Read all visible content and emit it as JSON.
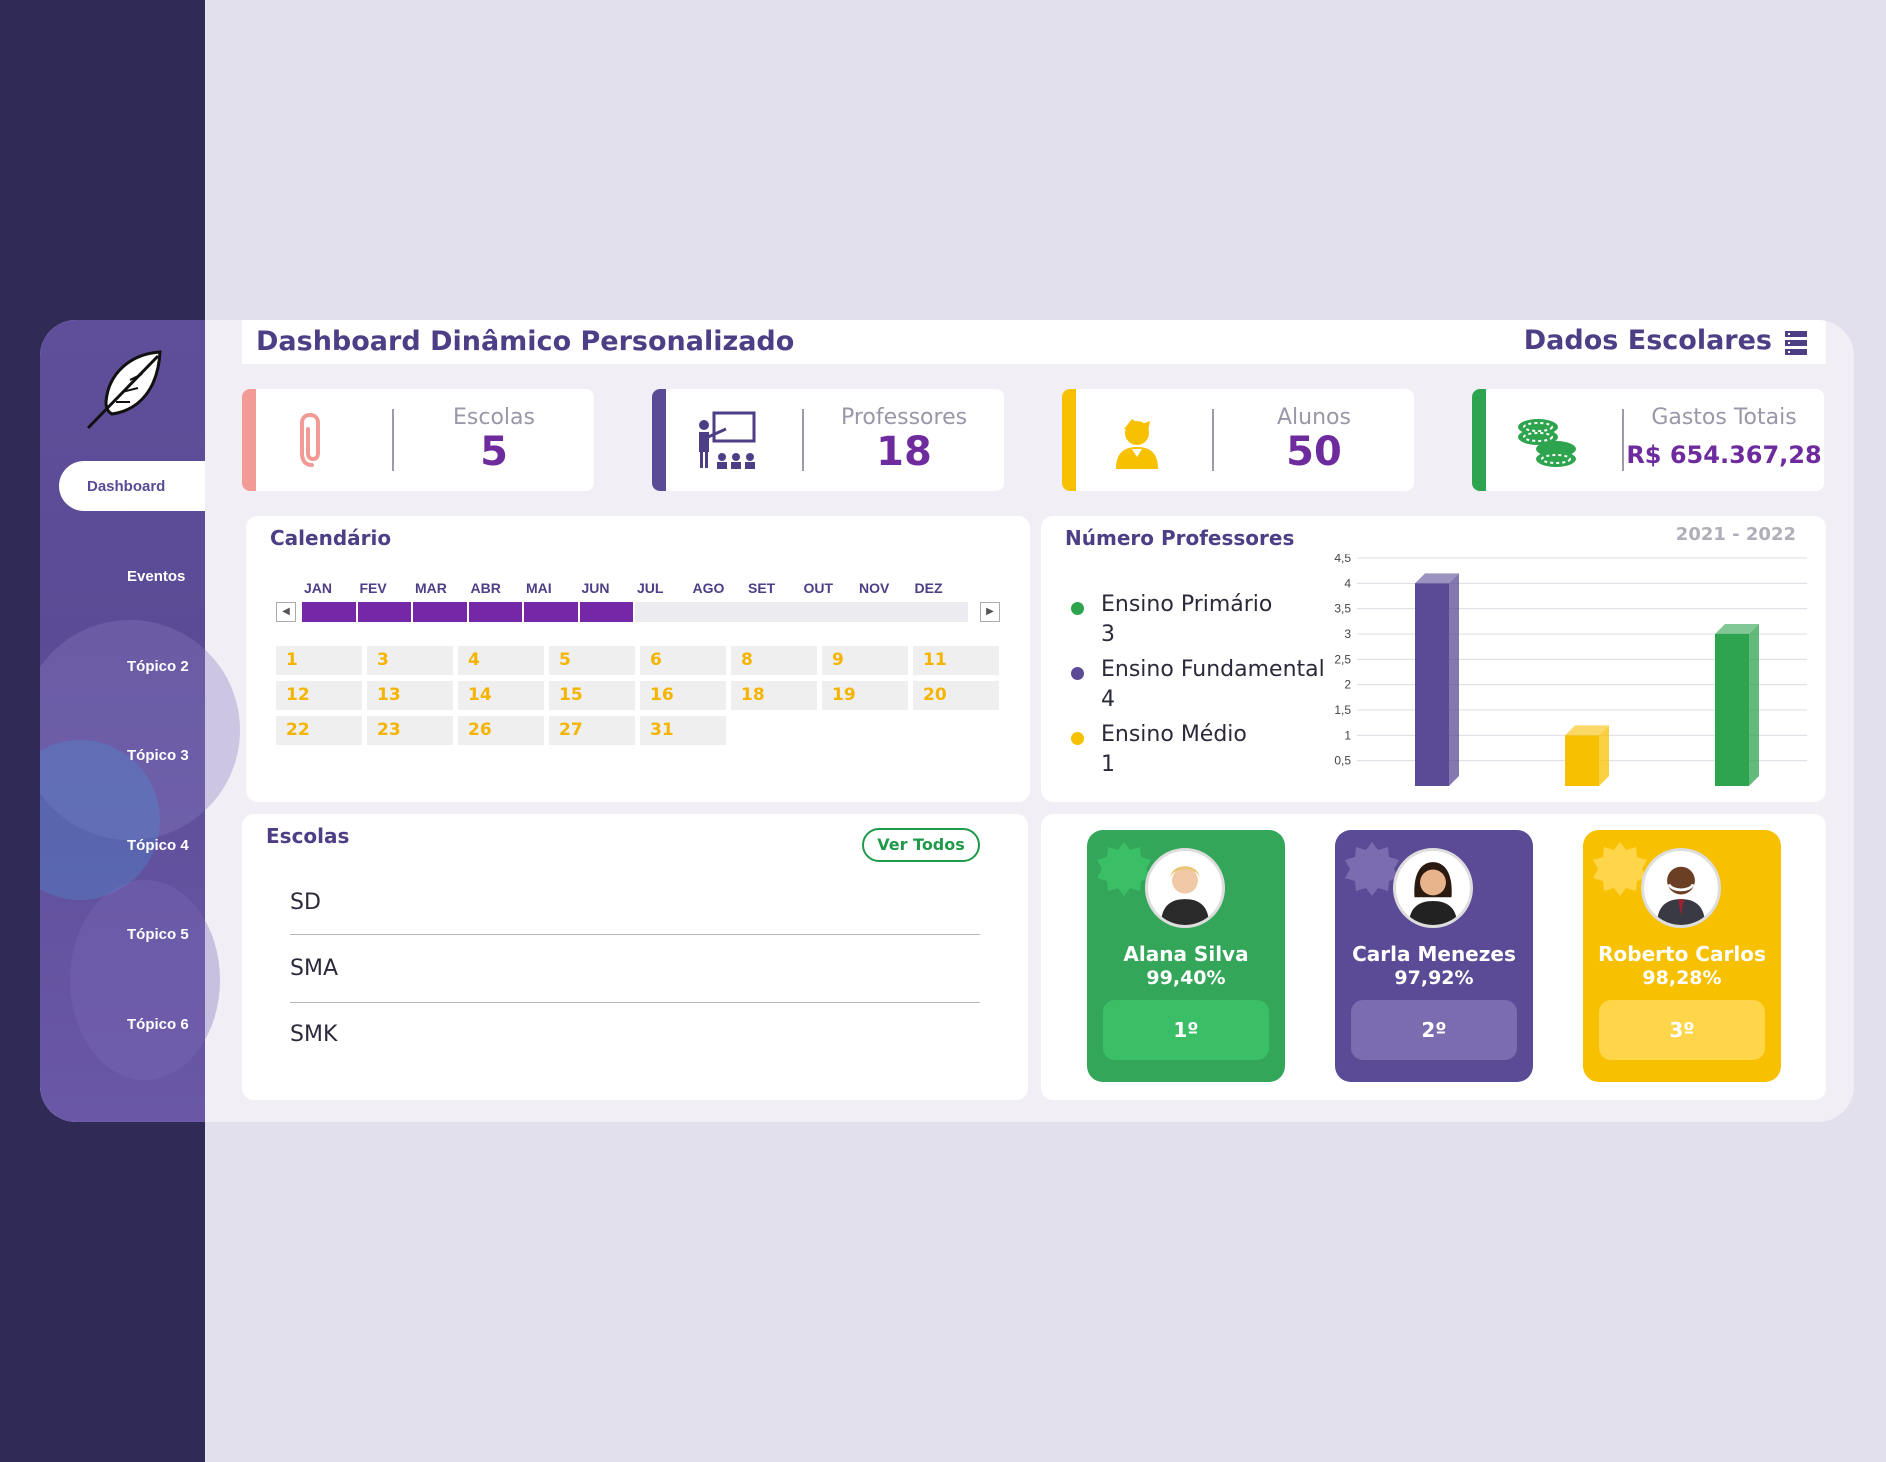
{
  "sidebar": {
    "items": [
      {
        "label": "Dashboard",
        "active": true
      },
      {
        "label": "Eventos"
      },
      {
        "label": "Tópico 2"
      },
      {
        "label": "Tópico 3"
      },
      {
        "label": "Tópico 4"
      },
      {
        "label": "Tópico 5"
      },
      {
        "label": "Tópico 6"
      }
    ]
  },
  "header": {
    "title": "Dashboard Dinâmico Personalizado",
    "section": "Dados Escolares"
  },
  "kpis": [
    {
      "label": "Escolas",
      "value": "5",
      "color": "#f29a96",
      "icon": "paperclip-icon"
    },
    {
      "label": "Professores",
      "value": "18",
      "color": "#5b4b96",
      "icon": "teacher-icon"
    },
    {
      "label": "Alunos",
      "value": "50",
      "color": "#f7c000",
      "icon": "student-icon"
    },
    {
      "label": "Gastos Totais",
      "value": "R$ 654.367,28",
      "color": "#2ea44f",
      "icon": "coins-icon"
    }
  ],
  "calendar": {
    "title": "Calendário",
    "months": [
      "JAN",
      "FEV",
      "MAR",
      "ABR",
      "MAI",
      "JUN",
      "JUL",
      "AGO",
      "SET",
      "OUT",
      "NOV",
      "DEZ"
    ],
    "selected_months": 6,
    "days": [
      "1",
      "3",
      "4",
      "5",
      "6",
      "8",
      "9",
      "11",
      "12",
      "13",
      "14",
      "15",
      "16",
      "18",
      "19",
      "20",
      "22",
      "23",
      "26",
      "27",
      "31"
    ]
  },
  "teachers": {
    "title": "Número Professores",
    "period": "2021 - 2022",
    "legend": [
      {
        "name": "Ensino Primário",
        "value": "3",
        "color": "#2ea44f"
      },
      {
        "name": "Ensino Fundamental",
        "value": "4",
        "color": "#5b4b96"
      },
      {
        "name": "Ensino Médio",
        "value": "1",
        "color": "#f7c000"
      }
    ]
  },
  "chart_data": {
    "type": "bar",
    "categories": [
      "Ensino Fundamental",
      "Ensino Médio",
      "Ensino Primário"
    ],
    "values": [
      4,
      1,
      3
    ],
    "colors": [
      "#5b4b96",
      "#f7c000",
      "#2ea44f"
    ],
    "yticks": [
      "0,5",
      "1",
      "1,5",
      "2",
      "2,5",
      "3",
      "3,5",
      "4",
      "4,5"
    ],
    "ylim": [
      0,
      4.5
    ],
    "grid": true
  },
  "schools": {
    "title": "Escolas",
    "view_all": "Ver Todos",
    "items": [
      "SD",
      "SMA",
      "SMK"
    ]
  },
  "ranking": [
    {
      "name": "Alana Silva",
      "percent": "99,40%",
      "position": "1º",
      "color": "#34a65a",
      "accent": "#3bbf66"
    },
    {
      "name": "Carla Menezes",
      "percent": "97,92%",
      "position": "2º",
      "color": "#5b4b96",
      "accent": "#7b6cb0"
    },
    {
      "name": "Roberto Carlos",
      "percent": "98,28%",
      "position": "3º",
      "color": "#f7c000",
      "accent": "#ffd54a"
    }
  ]
}
